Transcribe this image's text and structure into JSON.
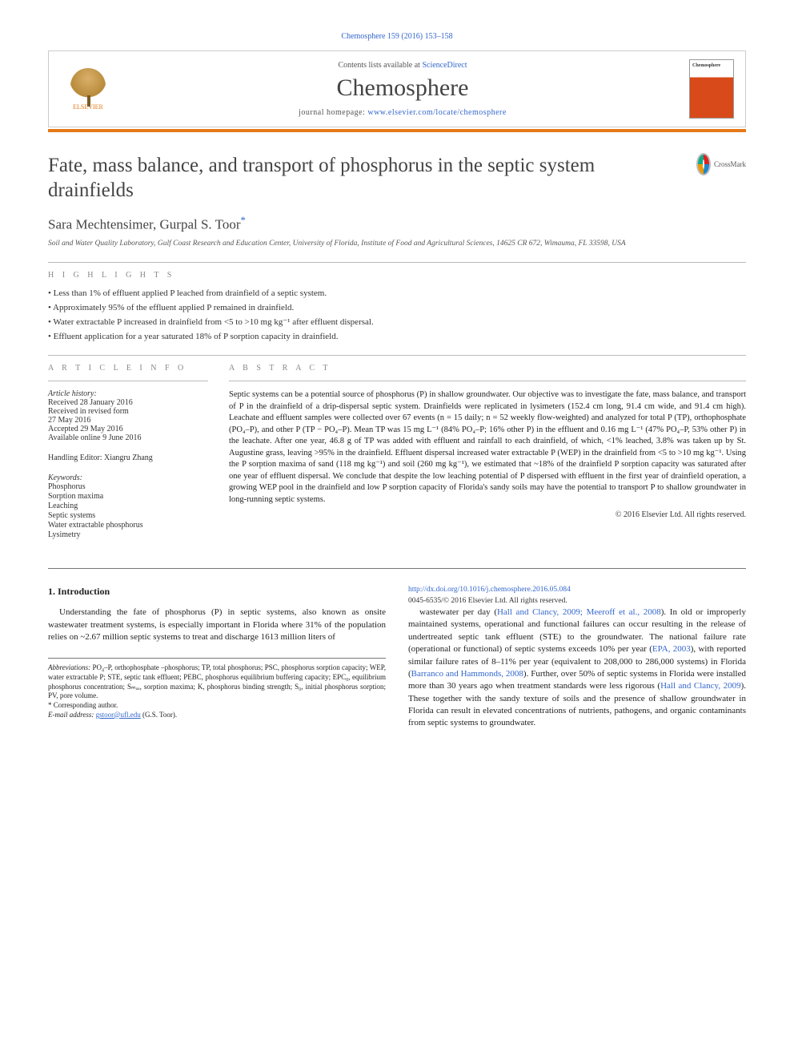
{
  "header": {
    "citation": "Chemosphere 159 (2016) 153–158",
    "contents_prefix": "Contents lists available at ",
    "contents_link": "ScienceDirect",
    "journal_name": "Chemosphere",
    "homepage_prefix": "journal homepage: ",
    "homepage_link": "www.elsevier.com/locate/chemosphere",
    "publisher_label": "ELSEVIER",
    "crossmark_label": "CrossMark"
  },
  "title": "Fate, mass balance, and transport of phosphorus in the septic system drainfields",
  "authors": "Sara Mechtensimer, Gurpal S. Toor",
  "corr_marker": "*",
  "affiliation": "Soil and Water Quality Laboratory, Gulf Coast Research and Education Center, University of Florida, Institute of Food and Agricultural Sciences, 14625 CR 672, Wimauma, FL 33598, USA",
  "highlights": {
    "label": "H I G H L I G H T S",
    "items": [
      "Less than 1% of effluent applied P leached from drainfield of a septic system.",
      "Approximately 95% of the effluent applied P remained in drainfield.",
      "Water extractable P increased in drainfield from <5 to >10 mg kg⁻¹ after effluent dispersal.",
      "Effluent application for a year saturated 18% of P sorption capacity in drainfield."
    ]
  },
  "article_info": {
    "label": "A R T I C L E   I N F O",
    "history_label": "Article history:",
    "history": [
      "Received 28 January 2016",
      "Received in revised form",
      "27 May 2016",
      "Accepted 29 May 2016",
      "Available online 9 June 2016"
    ],
    "editor_label": "Handling Editor: Xiangru Zhang",
    "keywords_label": "Keywords:",
    "keywords": [
      "Phosphorus",
      "Sorption maxima",
      "Leaching",
      "Septic systems",
      "Water extractable phosphorus",
      "Lysimetry"
    ]
  },
  "abstract": {
    "label": "A B S T R A C T",
    "text": "Septic systems can be a potential source of phosphorus (P) in shallow groundwater. Our objective was to investigate the fate, mass balance, and transport of P in the drainfield of a drip-dispersal septic system. Drainfields were replicated in lysimeters (152.4 cm long, 91.4 cm wide, and 91.4 cm high). Leachate and effluent samples were collected over 67 events (n = 15 daily; n = 52 weekly flow-weighted) and analyzed for total P (TP), orthophosphate (PO₄–P), and other P (TP − PO₄–P). Mean TP was 15 mg L⁻¹ (84% PO₄–P; 16% other P) in the effluent and 0.16 mg L⁻¹ (47% PO₄–P, 53% other P) in the leachate. After one year, 46.8 g of TP was added with effluent and rainfall to each drainfield, of which, <1% leached, 3.8% was taken up by St. Augustine grass, leaving >95% in the drainfield. Effluent dispersal increased water extractable P (WEP) in the drainfield from <5 to >10 mg kg⁻¹. Using the P sorption maxima of sand (118 mg kg⁻¹) and soil (260 mg kg⁻¹), we estimated that ~18% of the drainfield P sorption capacity was saturated after one year of effluent dispersal. We conclude that despite the low leaching potential of P dispersed with effluent in the first year of drainfield operation, a growing WEP pool in the drainfield and low P sorption capacity of Florida's sandy soils may have the potential to transport P to shallow groundwater in long-running septic systems.",
    "copyright": "© 2016 Elsevier Ltd. All rights reserved."
  },
  "body": {
    "section_number": "1.",
    "section_title": "Introduction",
    "para1_a": "Understanding the fate of phosphorus (P) in septic systems, also known as onsite wastewater treatment systems, is especially important in Florida where 31% of the population relies on ~2.67 million septic systems to treat and discharge 1613 million liters of",
    "para1_b_1": "wastewater per day (",
    "cite1": "Hall and Clancy, 2009; Meeroff et al., 2008",
    "para1_b_2": "). In old or improperly maintained systems, operational and functional failures can occur resulting in the release of undertreated septic tank effluent (STE) to the groundwater. The national failure rate (operational or functional) of septic systems exceeds 10% per year (",
    "cite2": "EPA, 2003",
    "para1_b_3": "), with reported similar failure rates of 8–11% per year (equivalent to 208,000 to 286,000 systems) in Florida (",
    "cite3": "Barranco and Hammonds, 2008",
    "para1_b_4": "). Further, over 50% of septic systems in Florida were installed more than 30 years ago when treatment standards were less rigorous (",
    "cite4": "Hall and Clancy, 2009",
    "para1_b_5": "). These together with the sandy texture of soils and the presence of shallow groundwater in Florida can result in elevated concentrations of nutrients, pathogens, and organic contaminants from septic systems to groundwater."
  },
  "footnotes": {
    "abbrev_label": "Abbreviations:",
    "abbrev_text": " PO₄–P, orthophosphate –phosphorus; TP, total phosphorus; PSC, phosphorus sorption capacity; WEP, water extractable P; STE, septic tank effluent; PEBC, phosphorus equilibrium buffering capacity; EPC₀, equilibrium phosphorus concentration; Sₘₐₓ, sorption maxima; K, phosphorus binding strength; S₀, initial phosphorus sorption; PV, pore volume.",
    "corr_label": "* Corresponding author.",
    "email_label": "E-mail address:",
    "email": "gstoor@ufl.edu",
    "email_person": " (G.S. Toor)."
  },
  "doi": {
    "url": "http://dx.doi.org/10.1016/j.chemosphere.2016.05.084",
    "issn_line": "0045-6535/© 2016 Elsevier Ltd. All rights reserved."
  },
  "colors": {
    "accent": "#e67817",
    "link": "#3366cc"
  }
}
